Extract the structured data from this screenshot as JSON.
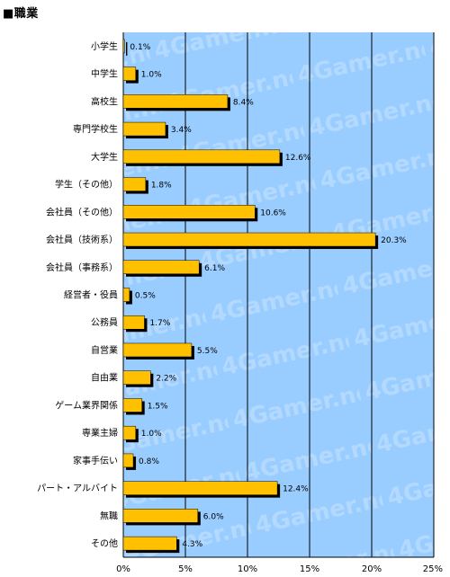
{
  "header": {
    "title": "■職業"
  },
  "watermark": "4Gamer.net",
  "colors": {
    "plot_bg": "#99ccff",
    "bar": "#ffc000",
    "shadow": "#000000",
    "grid": "#000000"
  },
  "chart_data": {
    "type": "bar",
    "orientation": "horizontal",
    "title": "■職業",
    "categories": [
      "小学生",
      "中学生",
      "高校生",
      "専門学校生",
      "大学生",
      "学生（その他）",
      "会社員（その他）",
      "会社員（技術系）",
      "会社員（事務系）",
      "経営者・役員",
      "公務員",
      "自営業",
      "自由業",
      "ゲーム業界関係",
      "専業主婦",
      "家事手伝い",
      "パート・アルバイト",
      "無職",
      "その他"
    ],
    "values": [
      0.1,
      1.0,
      8.4,
      3.4,
      12.6,
      1.8,
      10.6,
      20.3,
      6.1,
      0.5,
      1.7,
      5.5,
      2.2,
      1.5,
      1.0,
      0.8,
      12.4,
      6.0,
      4.3
    ],
    "value_labels": [
      "0.1%",
      "1.0%",
      "8.4%",
      "3.4%",
      "12.6%",
      "1.8%",
      "10.6%",
      "20.3%",
      "6.1%",
      "0.5%",
      "1.7%",
      "5.5%",
      "2.2%",
      "1.5%",
      "1.0%",
      "0.8%",
      "12.4%",
      "6.0%",
      "4.3%"
    ],
    "xlim": [
      0,
      25
    ],
    "xticks": [
      0,
      5,
      10,
      15,
      20,
      25
    ],
    "xtick_labels": [
      "0%",
      "5%",
      "10%",
      "15%",
      "20%",
      "25%"
    ],
    "grid": true,
    "legend": "none"
  }
}
